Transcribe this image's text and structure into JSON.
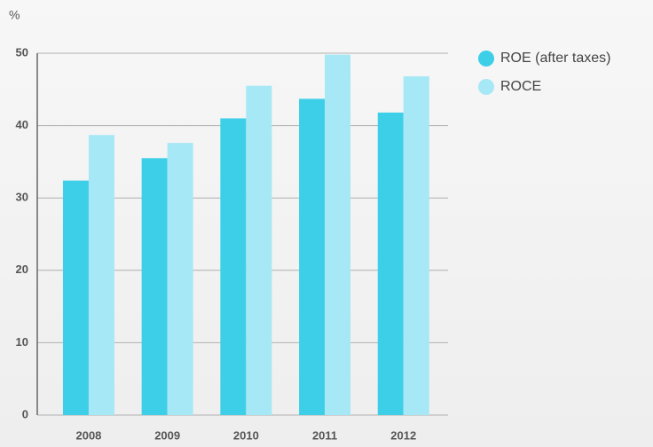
{
  "chart_data": {
    "type": "bar",
    "y_label": "%",
    "categories": [
      "2008",
      "2009",
      "2010",
      "2011",
      "2012"
    ],
    "series": [
      {
        "name": "ROE (after taxes)",
        "color": "#3ecfe8",
        "values": [
          32.4,
          35.5,
          41.0,
          43.7,
          41.8
        ]
      },
      {
        "name": "ROCE",
        "color": "#a6e8f5",
        "values": [
          38.7,
          37.6,
          45.5,
          49.8,
          46.8
        ]
      }
    ],
    "ylim": [
      0,
      50
    ],
    "yticks": [
      0,
      10,
      20,
      30,
      40,
      50
    ],
    "grid": true,
    "legend": "right"
  }
}
